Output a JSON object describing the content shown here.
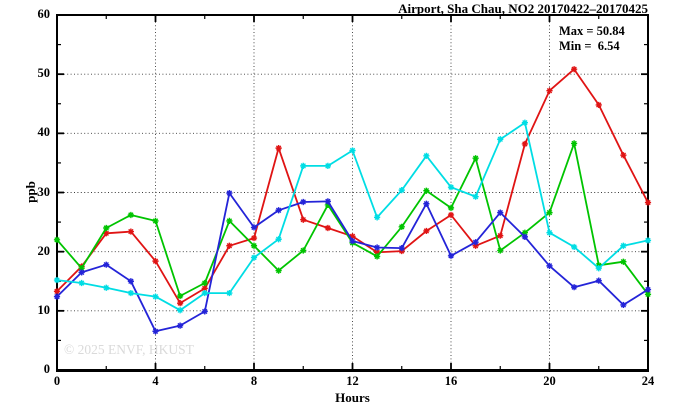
{
  "chart": {
    "title": "Airport, Sha Chau, NO2 20170422–20170425",
    "stats_box": {
      "max_line": "Max = 50.84",
      "min_line": "Min =  6.54"
    },
    "watermark": "© 2025 ENVF, HKUST"
  },
  "chart_data": {
    "type": "line",
    "title": "Airport, Sha Chau, NO2 20170422–20170425",
    "xlabel": "Hours",
    "ylabel": "ppb",
    "xlim": [
      0,
      24
    ],
    "ylim": [
      0,
      60
    ],
    "xticks": [
      0,
      4,
      8,
      12,
      16,
      20,
      24
    ],
    "yticks": [
      0,
      10,
      20,
      30,
      40,
      50,
      60
    ],
    "x_minor_step": 2,
    "y_minor_step": 5,
    "grid": "dotted lines at major ticks, ticks on all four borders",
    "legend_position": "none",
    "stat_max": 50.84,
    "stat_min": 6.54,
    "marker": "asterisk",
    "x": [
      0,
      1,
      2,
      3,
      4,
      5,
      6,
      7,
      8,
      9,
      10,
      11,
      12,
      13,
      14,
      15,
      16,
      17,
      18,
      19,
      20,
      21,
      22,
      23,
      24
    ],
    "series": [
      {
        "name": "red",
        "color": "#e01414",
        "values": [
          13.3,
          17.5,
          23.1,
          23.4,
          18.4,
          11.3,
          13.8,
          21.0,
          22.3,
          37.5,
          25.4,
          24.0,
          22.6,
          19.9,
          20.1,
          23.5,
          26.2,
          21.0,
          22.7,
          38.2,
          47.2,
          50.84,
          44.8,
          36.3,
          28.3
        ]
      },
      {
        "name": "green",
        "color": "#00c400",
        "values": [
          22.0,
          17.2,
          24.0,
          26.2,
          25.2,
          12.5,
          14.7,
          25.2,
          21.0,
          16.8,
          20.2,
          27.9,
          21.5,
          19.2,
          24.2,
          30.3,
          27.4,
          35.8,
          20.2,
          23.2,
          26.6,
          38.3,
          17.7,
          18.3,
          12.8
        ]
      },
      {
        "name": "blue",
        "color": "#2424d8",
        "values": [
          12.4,
          16.5,
          17.8,
          15.0,
          6.54,
          7.5,
          9.9,
          29.9,
          24.1,
          27.0,
          28.4,
          28.5,
          21.8,
          20.7,
          20.6,
          28.1,
          19.3,
          21.6,
          26.6,
          22.5,
          17.6,
          14.0,
          15.1,
          11.0,
          13.6
        ]
      },
      {
        "name": "cyan",
        "color": "#00dde4",
        "values": [
          15.2,
          14.7,
          13.9,
          13.0,
          12.4,
          10.1,
          13.0,
          13.0,
          19.0,
          22.1,
          34.5,
          34.5,
          37.1,
          25.8,
          30.4,
          36.2,
          30.9,
          29.3,
          39.0,
          41.8,
          23.2,
          20.8,
          17.2,
          21.0,
          21.9
        ]
      }
    ]
  }
}
